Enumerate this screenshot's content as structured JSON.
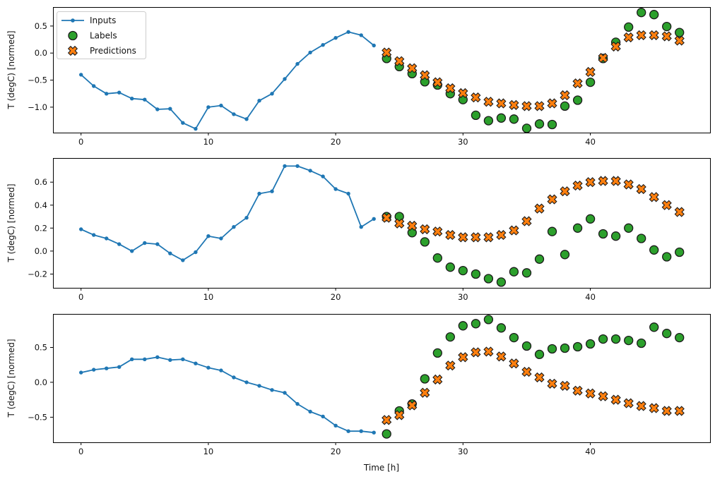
{
  "figure": {
    "background": "#ffffff",
    "axis_color": "#000000",
    "marker_edge_color": "#1a1a1a",
    "legend": {
      "position": "upper-left-first-subplot",
      "items": [
        {
          "label": "Inputs",
          "type": "line-dot",
          "color": "#1f77b4"
        },
        {
          "label": "Labels",
          "type": "circle",
          "color": "#2ca02c"
        },
        {
          "label": "Predictions",
          "type": "x",
          "color": "#ff7f0e"
        }
      ]
    }
  },
  "chart_data": [
    {
      "type": "line+scatter",
      "title": "",
      "ylabel": "T (degC) [normed]",
      "xlabel": "",
      "grid": false,
      "xlim": [
        -2.2,
        49.4
      ],
      "ylim": [
        -1.47,
        0.85
      ],
      "xticks": [
        0,
        10,
        20,
        30,
        40
      ],
      "xticklabels": [
        "0",
        "10",
        "20",
        "30",
        "40"
      ],
      "yticks": [
        0.5,
        0.0,
        -0.5,
        -1.0
      ],
      "yticklabels": [
        "0.5",
        "0.0",
        "−0.5",
        "−1.0"
      ],
      "legend": true,
      "series": [
        {
          "name": "Inputs",
          "marker": "dot-line",
          "color": "#1f77b4",
          "x": [
            0,
            1,
            2,
            3,
            4,
            5,
            6,
            7,
            8,
            9,
            10,
            11,
            12,
            13,
            14,
            15,
            16,
            17,
            18,
            19,
            20,
            21,
            22,
            23
          ],
          "values": [
            -0.4,
            -0.61,
            -0.75,
            -0.73,
            -0.84,
            -0.86,
            -1.04,
            -1.03,
            -1.29,
            -1.4,
            -1.0,
            -0.97,
            -1.13,
            -1.22,
            -0.88,
            -0.75,
            -0.48,
            -0.2,
            0.01,
            0.15,
            0.28,
            0.39,
            0.33,
            0.14
          ]
        },
        {
          "name": "Labels",
          "marker": "circle",
          "color": "#2ca02c",
          "x": [
            24,
            25,
            26,
            27,
            28,
            29,
            30,
            31,
            32,
            33,
            34,
            35,
            36,
            37,
            38,
            39,
            40,
            41,
            42,
            43,
            44,
            45,
            46,
            47
          ],
          "values": [
            -0.1,
            -0.25,
            -0.38,
            -0.53,
            -0.59,
            -0.75,
            -0.86,
            -1.15,
            -1.25,
            -1.2,
            -1.22,
            -1.39,
            -1.31,
            -1.32,
            -0.98,
            -0.87,
            -0.54,
            -0.1,
            0.2,
            0.48,
            0.75,
            0.71,
            0.49,
            0.38
          ]
        },
        {
          "name": "Predictions",
          "marker": "X",
          "color": "#ff7f0e",
          "x": [
            24,
            25,
            26,
            27,
            28,
            29,
            30,
            31,
            32,
            33,
            34,
            35,
            36,
            37,
            38,
            39,
            40,
            41,
            42,
            43,
            44,
            45,
            46,
            47
          ],
          "values": [
            0.01,
            -0.15,
            -0.28,
            -0.41,
            -0.54,
            -0.65,
            -0.74,
            -0.82,
            -0.9,
            -0.93,
            -0.96,
            -0.98,
            -0.98,
            -0.93,
            -0.78,
            -0.56,
            -0.35,
            -0.09,
            0.12,
            0.29,
            0.33,
            0.33,
            0.31,
            0.23
          ]
        }
      ]
    },
    {
      "type": "line+scatter",
      "title": "",
      "ylabel": "T (degC) [normed]",
      "xlabel": "",
      "grid": false,
      "xlim": [
        -2.2,
        49.4
      ],
      "ylim": [
        -0.32,
        0.81
      ],
      "xticks": [
        0,
        10,
        20,
        30,
        40
      ],
      "xticklabels": [
        "0",
        "10",
        "20",
        "30",
        "40"
      ],
      "yticks": [
        0.6,
        0.4,
        0.2,
        0.0,
        -0.2
      ],
      "yticklabels": [
        "0.6",
        "0.4",
        "0.2",
        "0.0",
        "−0.2"
      ],
      "legend": false,
      "series": [
        {
          "name": "Inputs",
          "marker": "dot-line",
          "color": "#1f77b4",
          "x": [
            0,
            1,
            2,
            3,
            4,
            5,
            6,
            7,
            8,
            9,
            10,
            11,
            12,
            13,
            14,
            15,
            16,
            17,
            18,
            19,
            20,
            21,
            22,
            23
          ],
          "values": [
            0.19,
            0.14,
            0.11,
            0.06,
            0.0,
            0.07,
            0.06,
            -0.02,
            -0.08,
            -0.01,
            0.13,
            0.11,
            0.21,
            0.29,
            0.5,
            0.52,
            0.74,
            0.74,
            0.7,
            0.65,
            0.54,
            0.5,
            0.21,
            0.28
          ]
        },
        {
          "name": "Labels",
          "marker": "circle",
          "color": "#2ca02c",
          "x": [
            24,
            25,
            26,
            27,
            28,
            29,
            30,
            31,
            32,
            33,
            34,
            35,
            36,
            37,
            38,
            39,
            40,
            41,
            42,
            43,
            44,
            45,
            46,
            47
          ],
          "values": [
            0.3,
            0.3,
            0.16,
            0.08,
            -0.06,
            -0.14,
            -0.17,
            -0.2,
            -0.24,
            -0.27,
            -0.18,
            -0.19,
            -0.07,
            0.17,
            -0.03,
            0.2,
            0.28,
            0.15,
            0.13,
            0.2,
            0.11,
            0.01,
            -0.05,
            -0.01
          ]
        },
        {
          "name": "Predictions",
          "marker": "X",
          "color": "#ff7f0e",
          "x": [
            24,
            25,
            26,
            27,
            28,
            29,
            30,
            31,
            32,
            33,
            34,
            35,
            36,
            37,
            38,
            39,
            40,
            41,
            42,
            43,
            44,
            45,
            46,
            47
          ],
          "values": [
            0.29,
            0.24,
            0.22,
            0.19,
            0.17,
            0.14,
            0.12,
            0.12,
            0.12,
            0.14,
            0.18,
            0.26,
            0.37,
            0.45,
            0.52,
            0.57,
            0.6,
            0.61,
            0.61,
            0.58,
            0.54,
            0.47,
            0.4,
            0.34
          ]
        }
      ]
    },
    {
      "type": "line+scatter",
      "title": "",
      "ylabel": "T (degC) [normed]",
      "xlabel": "Time [h]",
      "grid": false,
      "xlim": [
        -2.2,
        49.4
      ],
      "ylim": [
        -0.86,
        0.98
      ],
      "xticks": [
        0,
        10,
        20,
        30,
        40
      ],
      "xticklabels": [
        "0",
        "10",
        "20",
        "30",
        "40"
      ],
      "yticks": [
        0.5,
        0.0,
        -0.5
      ],
      "yticklabels": [
        "0.5",
        "0.0",
        "−0.5"
      ],
      "legend": false,
      "series": [
        {
          "name": "Inputs",
          "marker": "dot-line",
          "color": "#1f77b4",
          "x": [
            0,
            1,
            2,
            3,
            4,
            5,
            6,
            7,
            8,
            9,
            10,
            11,
            12,
            13,
            14,
            15,
            16,
            17,
            18,
            19,
            20,
            21,
            22,
            23
          ],
          "values": [
            0.14,
            0.18,
            0.2,
            0.22,
            0.33,
            0.33,
            0.36,
            0.32,
            0.33,
            0.27,
            0.21,
            0.17,
            0.07,
            0.0,
            -0.05,
            -0.11,
            -0.15,
            -0.31,
            -0.42,
            -0.49,
            -0.62,
            -0.7,
            -0.7,
            -0.72
          ]
        },
        {
          "name": "Labels",
          "marker": "circle",
          "color": "#2ca02c",
          "x": [
            24,
            25,
            26,
            27,
            28,
            29,
            30,
            31,
            32,
            33,
            34,
            35,
            36,
            37,
            38,
            39,
            40,
            41,
            42,
            43,
            44,
            45,
            46,
            47
          ],
          "values": [
            -0.74,
            -0.41,
            -0.31,
            0.05,
            0.42,
            0.65,
            0.81,
            0.84,
            0.9,
            0.78,
            0.64,
            0.52,
            0.4,
            0.48,
            0.49,
            0.51,
            0.55,
            0.62,
            0.62,
            0.6,
            0.56,
            0.79,
            0.7,
            0.64
          ]
        },
        {
          "name": "Predictions",
          "marker": "X",
          "color": "#ff7f0e",
          "x": [
            24,
            25,
            26,
            27,
            28,
            29,
            30,
            31,
            32,
            33,
            34,
            35,
            36,
            37,
            38,
            39,
            40,
            41,
            42,
            43,
            44,
            45,
            46,
            47
          ],
          "values": [
            -0.54,
            -0.47,
            -0.33,
            -0.15,
            0.04,
            0.24,
            0.36,
            0.43,
            0.44,
            0.37,
            0.27,
            0.15,
            0.07,
            -0.02,
            -0.05,
            -0.12,
            -0.16,
            -0.2,
            -0.25,
            -0.3,
            -0.34,
            -0.37,
            -0.41,
            -0.41
          ]
        }
      ]
    }
  ]
}
